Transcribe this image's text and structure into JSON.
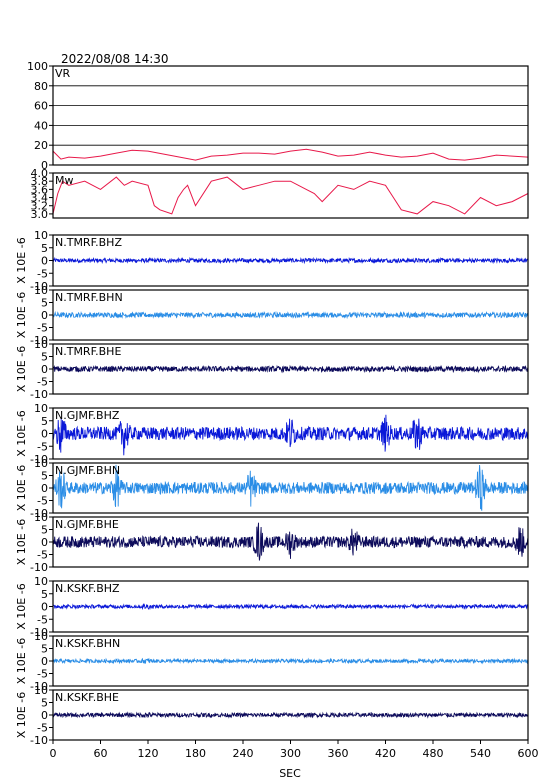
{
  "header": {
    "timestamp": "2022/08/08  14:30"
  },
  "x_axis": {
    "label": "SEC",
    "ticks": [
      0,
      60,
      120,
      180,
      240,
      300,
      360,
      420,
      480,
      540,
      600
    ],
    "range": [
      0,
      600
    ]
  },
  "colors": {
    "frame": "#000000",
    "vr_line": "#e8194a",
    "mw_line": "#e8194a",
    "bhz": "#0a18d8",
    "bhn": "#2a8de6",
    "bhe": "#0c0a5a"
  },
  "chart_data": [
    {
      "type": "line",
      "label": "VR",
      "ylim": [
        0,
        100
      ],
      "yticks": [
        0,
        20,
        40,
        60,
        80,
        100
      ],
      "grid": true,
      "x": [
        0,
        10,
        20,
        40,
        60,
        80,
        100,
        120,
        140,
        160,
        180,
        200,
        220,
        240,
        260,
        280,
        300,
        320,
        340,
        360,
        380,
        400,
        420,
        440,
        460,
        480,
        500,
        520,
        540,
        560,
        580,
        600
      ],
      "y": [
        14,
        6,
        8,
        7,
        9,
        12,
        15,
        14,
        11,
        8,
        5,
        9,
        10,
        12,
        12,
        11,
        14,
        16,
        13,
        9,
        10,
        13,
        10,
        8,
        9,
        12,
        6,
        5,
        7,
        10,
        9,
        8
      ]
    },
    {
      "type": "line",
      "label": "Mw",
      "ylim": [
        2.9,
        4.0
      ],
      "yticks": [
        3.0,
        3.2,
        3.4,
        3.6,
        3.8,
        4.0
      ],
      "tick_labels": [
        "3.0",
        "3.2",
        "3.4",
        "3.6",
        "3.8",
        "4.0"
      ],
      "x": [
        0,
        6,
        12,
        20,
        40,
        60,
        80,
        90,
        100,
        120,
        128,
        135,
        150,
        158,
        165,
        170,
        180,
        200,
        220,
        240,
        260,
        280,
        300,
        320,
        330,
        340,
        360,
        380,
        400,
        420,
        430,
        440,
        460,
        480,
        500,
        520,
        540,
        560,
        580,
        600
      ],
      "y": [
        3.0,
        3.5,
        3.8,
        3.7,
        3.8,
        3.6,
        3.9,
        3.7,
        3.8,
        3.7,
        3.2,
        3.1,
        3.0,
        3.4,
        3.6,
        3.7,
        3.2,
        3.8,
        3.9,
        3.6,
        3.7,
        3.8,
        3.8,
        3.6,
        3.5,
        3.3,
        3.7,
        3.6,
        3.8,
        3.7,
        3.4,
        3.1,
        3.0,
        3.3,
        3.2,
        3.0,
        3.4,
        3.2,
        3.3,
        3.5
      ]
    },
    {
      "type": "line",
      "label": "N.TMRF.BHZ",
      "ylim": [
        -10,
        10
      ],
      "yticks": [
        -10,
        -5,
        0,
        5,
        10
      ],
      "ylabel": "X 10E -6",
      "component": "bhz",
      "amplitude": 0.8,
      "bursts": []
    },
    {
      "type": "line",
      "label": "N.TMRF.BHN",
      "ylim": [
        -10,
        10
      ],
      "yticks": [
        -10,
        -5,
        0,
        5,
        10
      ],
      "ylabel": "X 10E -6",
      "component": "bhn",
      "amplitude": 1.0,
      "bursts": []
    },
    {
      "type": "line",
      "label": "N.TMRF.BHE",
      "ylim": [
        -10,
        10
      ],
      "yticks": [
        -10,
        -5,
        0,
        5,
        10
      ],
      "ylabel": "X 10E -6",
      "component": "bhe",
      "amplitude": 1.1,
      "bursts": []
    },
    {
      "type": "line",
      "label": "N.GJMF.BHZ",
      "ylim": [
        -10,
        10
      ],
      "yticks": [
        -10,
        -5,
        0,
        5,
        10
      ],
      "ylabel": "X 10E -6",
      "component": "bhz",
      "amplitude": 2.6,
      "bursts": [
        [
          10,
          3.5
        ],
        [
          90,
          3.5
        ],
        [
          300,
          3.0
        ],
        [
          420,
          3.0
        ],
        [
          460,
          3.5
        ]
      ]
    },
    {
      "type": "line",
      "label": "N.GJMF.BHN",
      "ylim": [
        -10,
        10
      ],
      "yticks": [
        -10,
        -5,
        0,
        5,
        10
      ],
      "ylabel": "X 10E -6",
      "component": "bhn",
      "amplitude": 2.4,
      "bursts": [
        [
          10,
          4.0
        ],
        [
          80,
          4.0
        ],
        [
          250,
          3.5
        ],
        [
          540,
          4.5
        ]
      ]
    },
    {
      "type": "line",
      "label": "N.GJMF.BHE",
      "ylim": [
        -10,
        10
      ],
      "yticks": [
        -10,
        -5,
        0,
        5,
        10
      ],
      "ylabel": "X 10E -6",
      "component": "bhe",
      "amplitude": 2.3,
      "bursts": [
        [
          260,
          4.0
        ],
        [
          300,
          3.0
        ],
        [
          380,
          3.0
        ],
        [
          590,
          3.5
        ]
      ]
    },
    {
      "type": "line",
      "label": "N.KSKF.BHZ",
      "ylim": [
        -10,
        10
      ],
      "yticks": [
        -10,
        -5,
        0,
        5,
        10
      ],
      "ylabel": "X 10E -6",
      "component": "bhz",
      "amplitude": 0.7,
      "bursts": [
        [
          118,
          1.8
        ]
      ]
    },
    {
      "type": "line",
      "label": "N.KSKF.BHN",
      "ylim": [
        -10,
        10
      ],
      "yticks": [
        -10,
        -5,
        0,
        5,
        10
      ],
      "ylabel": "X 10E -6",
      "component": "bhn",
      "amplitude": 0.7,
      "bursts": [
        [
          118,
          1.8
        ]
      ]
    },
    {
      "type": "line",
      "label": "N.KSKF.BHE",
      "ylim": [
        -10,
        10
      ],
      "yticks": [
        -10,
        -5,
        0,
        5,
        10
      ],
      "ylabel": "X 10E -6",
      "component": "bhe",
      "amplitude": 0.8,
      "bursts": [
        [
          118,
          1.6
        ]
      ]
    }
  ]
}
